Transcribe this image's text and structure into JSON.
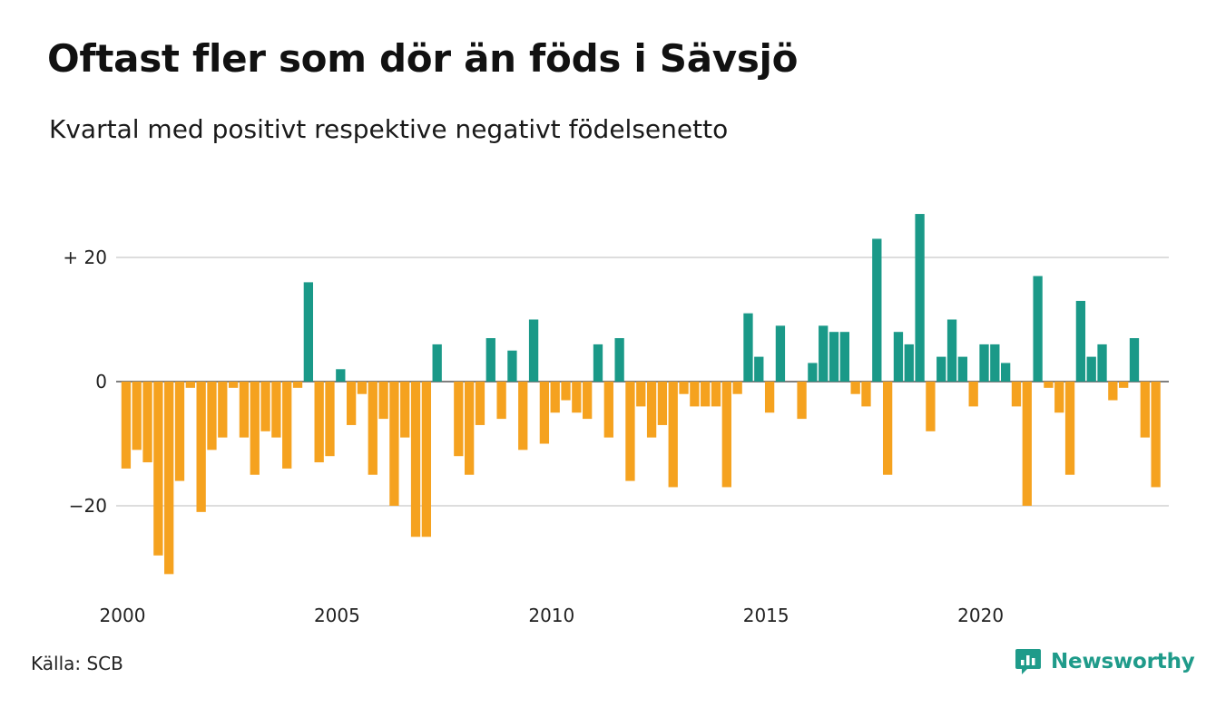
{
  "header": {
    "title": "Oftast fler som dör än föds i Sävsjö",
    "subtitle": "Kvartal med positivt respektive negativt födelsenetto"
  },
  "footer": {
    "source": "Källa: SCB",
    "brand": "Newsworthy"
  },
  "colors": {
    "positive": "#1a9988",
    "negative": "#f5a21f",
    "grid": "#dddddd",
    "brand": "#1f9b8a"
  },
  "chart_data": {
    "type": "bar",
    "title": "Oftast fler som dör än föds i Sävsjö",
    "subtitle": "Kvartal med positivt respektive negativt födelsenetto",
    "xlabel": "",
    "ylabel": "",
    "ylim": [
      -32,
      28
    ],
    "yticks": [
      -20,
      0,
      20
    ],
    "ytick_labels": [
      "−20",
      "0",
      "+ 20"
    ],
    "x_start": "2000 Q1",
    "period": "quarter",
    "xticks": [
      2000,
      2005,
      2010,
      2015,
      2020
    ],
    "grid": true,
    "legend": "none",
    "values": [
      -14,
      -11,
      -13,
      -28,
      -31,
      -16,
      -1,
      -21,
      -11,
      -9,
      -1,
      -9,
      -15,
      -8,
      -9,
      -14,
      -1,
      16,
      -13,
      -12,
      2,
      -7,
      -2,
      -15,
      -6,
      -20,
      -9,
      -25,
      -25,
      6,
      0,
      -12,
      -15,
      -7,
      7,
      -6,
      5,
      -11,
      10,
      -10,
      -5,
      -3,
      -5,
      -6,
      6,
      -9,
      7,
      -16,
      -4,
      -9,
      -7,
      -17,
      -2,
      -4,
      -4,
      -4,
      -17,
      -2,
      11,
      4,
      -5,
      9,
      0,
      -6,
      3,
      9,
      8,
      8,
      -2,
      -4,
      23,
      -15,
      8,
      6,
      27,
      -8,
      4,
      10,
      4,
      -4,
      6,
      6,
      3,
      -4,
      -20,
      17,
      -1,
      -5,
      -15,
      13,
      4,
      6,
      -3,
      -1,
      7,
      -9,
      -17
    ]
  }
}
